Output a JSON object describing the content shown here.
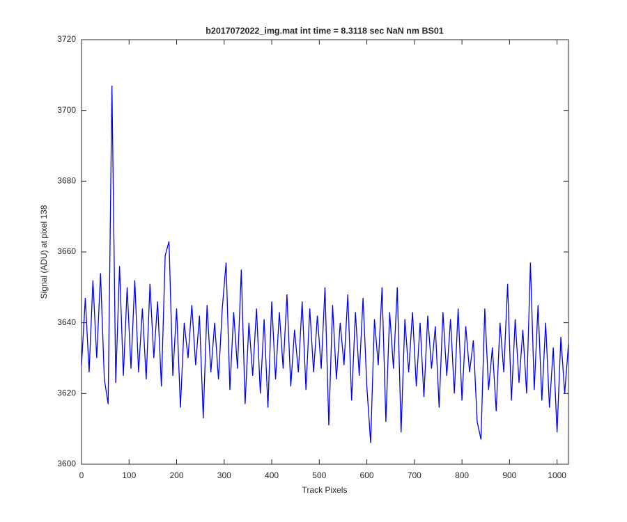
{
  "chart_data": {
    "type": "line",
    "title": "b2017072022_img.mat int time = 8.3118 sec  NaN nm BS01",
    "x_label": "Track Pixels",
    "y_label": "Signal (ADU) at pixel 138",
    "xlim": [
      0,
      1024
    ],
    "ylim": [
      3600,
      3720
    ],
    "xticks": [
      0,
      100,
      200,
      300,
      400,
      500,
      600,
      700,
      800,
      900,
      1000
    ],
    "yticks": [
      3600,
      3620,
      3640,
      3660,
      3680,
      3700,
      3720
    ],
    "grid": false,
    "x": [
      0,
      8,
      16,
      24,
      32,
      40,
      48,
      56,
      64,
      72,
      80,
      88,
      96,
      104,
      112,
      120,
      128,
      136,
      144,
      152,
      160,
      168,
      176,
      184,
      192,
      200,
      208,
      216,
      224,
      232,
      240,
      248,
      256,
      264,
      272,
      280,
      288,
      296,
      304,
      312,
      320,
      328,
      336,
      344,
      352,
      360,
      368,
      376,
      384,
      392,
      400,
      408,
      416,
      424,
      432,
      440,
      448,
      456,
      464,
      472,
      480,
      488,
      496,
      504,
      512,
      520,
      528,
      536,
      544,
      552,
      560,
      568,
      576,
      584,
      592,
      600,
      608,
      616,
      624,
      632,
      640,
      648,
      656,
      664,
      672,
      680,
      688,
      696,
      704,
      712,
      720,
      728,
      736,
      744,
      752,
      760,
      768,
      776,
      784,
      792,
      800,
      808,
      816,
      824,
      832,
      840,
      848,
      856,
      864,
      872,
      880,
      888,
      896,
      904,
      912,
      920,
      928,
      936,
      944,
      952,
      960,
      968,
      976,
      984,
      992,
      1000,
      1008,
      1016,
      1024
    ],
    "series": [
      {
        "color": "#0000ff",
        "values": [
          3628,
          3647,
          3626,
          3652,
          3630,
          3654,
          3624,
          3617,
          3707,
          3623,
          3656,
          3625,
          3650,
          3627,
          3652,
          3626,
          3644,
          3624,
          3651,
          3630,
          3646,
          3622,
          3659,
          3663,
          3625,
          3644,
          3616,
          3640,
          3630,
          3645,
          3628,
          3642,
          3613,
          3645,
          3626,
          3640,
          3624,
          3644,
          3657,
          3621,
          3643,
          3627,
          3655,
          3617,
          3640,
          3625,
          3644,
          3620,
          3641,
          3616,
          3646,
          3624,
          3643,
          3627,
          3648,
          3622,
          3638,
          3626,
          3646,
          3621,
          3644,
          3626,
          3642,
          3627,
          3650,
          3611,
          3645,
          3624,
          3640,
          3628,
          3648,
          3618,
          3643,
          3625,
          3647,
          3622,
          3606,
          3641,
          3628,
          3650,
          3612,
          3643,
          3627,
          3650,
          3609,
          3641,
          3626,
          3643,
          3622,
          3640,
          3619,
          3642,
          3627,
          3639,
          3616,
          3643,
          3625,
          3641,
          3620,
          3644,
          3618,
          3639,
          3626,
          3635,
          3612,
          3607,
          3644,
          3621,
          3633,
          3615,
          3640,
          3626,
          3651,
          3618,
          3641,
          3623,
          3638,
          3620,
          3657,
          3621,
          3645,
          3618,
          3640,
          3616,
          3633,
          3609,
          3636,
          3620,
          3634
        ]
      }
    ]
  }
}
